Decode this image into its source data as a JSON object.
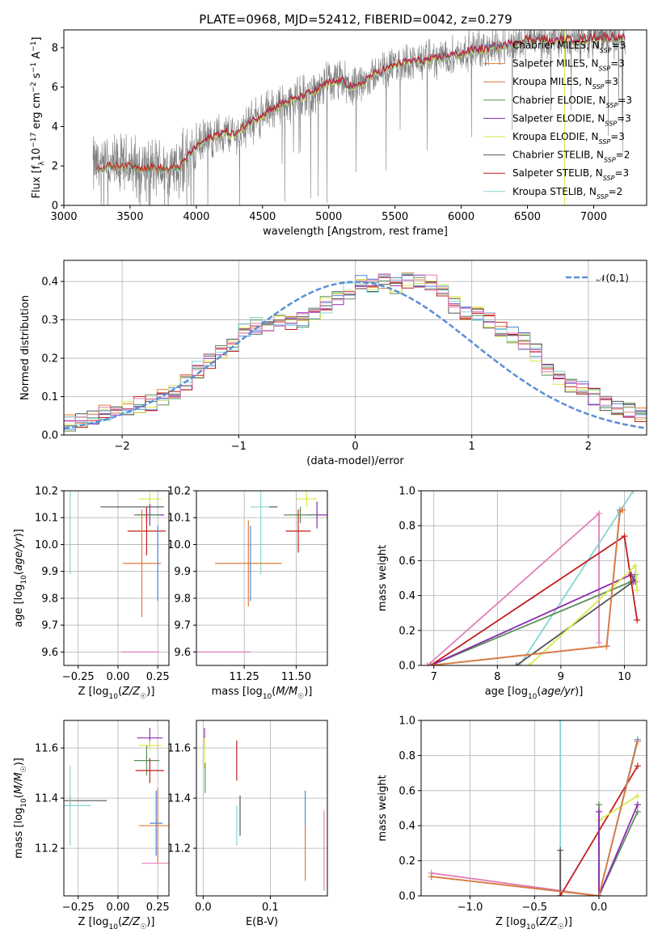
{
  "colors": {
    "chabrier_miles": "#4f86d6",
    "salpeter_miles": "#e07b39",
    "kroupa_miles": "#d2773a",
    "chabrier_elodie": "#5a8f5a",
    "salpeter_elodie": "#8e2bb0",
    "kroupa_elodie": "#d9ea4a",
    "chabrier_stelib": "#555555",
    "salpeter_stelib": "#c41e1e",
    "kroupa_stelib": "#86d4d4",
    "pink": "#e27fb8",
    "normal": "#5b8fd6",
    "spectrum_gray": "#7f7f7f"
  },
  "chart_data": [
    {
      "id": "spectrum",
      "type": "line",
      "title": "PLATE=0968, MJD=52412, FIBERID=0042, z=0.279",
      "xlabel": "wavelength [Angstrom, rest frame]",
      "ylabel": "Flux [f_λ10^-17 erg cm^-2 s^-1 A^-1]",
      "xlim": [
        3000,
        7400
      ],
      "ylim": [
        0,
        8.9
      ],
      "xticks": [
        "3000",
        "3500",
        "4000",
        "4500",
        "5000",
        "5500",
        "6000",
        "6500",
        "7000"
      ],
      "yticks": [
        "0",
        "2",
        "4",
        "6",
        "8"
      ],
      "legend": {
        "placement": "right",
        "entries": [
          {
            "label": "Chabrier MILES, N",
            "sub": "SSP",
            "tail": "=3",
            "color": "chabrier_miles"
          },
          {
            "label": "Salpeter MILES, N",
            "sub": "SSP",
            "tail": "=3",
            "color": "salpeter_miles"
          },
          {
            "label": "Kroupa MILES, N",
            "sub": "SSP",
            "tail": "=3",
            "color": "kroupa_miles"
          },
          {
            "label": "Chabrier ELODIE, N",
            "sub": "SSP",
            "tail": "=3",
            "color": "chabrier_elodie"
          },
          {
            "label": "Salpeter ELODIE, N",
            "sub": "SSP",
            "tail": "=3",
            "color": "salpeter_elodie"
          },
          {
            "label": "Kroupa ELODIE, N",
            "sub": "SSP",
            "tail": "=3",
            "color": "kroupa_elodie"
          },
          {
            "label": "Chabrier STELIB, N",
            "sub": "SSP",
            "tail": "=2",
            "color": "chabrier_stelib"
          },
          {
            "label": "Salpeter STELIB, N",
            "sub": "SSP",
            "tail": "=3",
            "color": "salpeter_stelib"
          },
          {
            "label": "Kroupa STELIB, N",
            "sub": "SSP",
            "tail": "=2",
            "color": "kroupa_stelib"
          }
        ]
      },
      "continuum": [
        [
          3220,
          2.0
        ],
        [
          3300,
          1.9
        ],
        [
          3400,
          2.0
        ],
        [
          3500,
          2.0
        ],
        [
          3600,
          1.9
        ],
        [
          3700,
          1.9
        ],
        [
          3800,
          1.8
        ],
        [
          3880,
          2.0
        ],
        [
          3950,
          2.6
        ],
        [
          4000,
          3.0
        ],
        [
          4100,
          3.4
        ],
        [
          4200,
          3.7
        ],
        [
          4300,
          3.6
        ],
        [
          4400,
          4.2
        ],
        [
          4500,
          4.6
        ],
        [
          4600,
          5.0
        ],
        [
          4700,
          5.3
        ],
        [
          4800,
          5.5
        ],
        [
          4900,
          5.8
        ],
        [
          5000,
          6.2
        ],
        [
          5100,
          6.3
        ],
        [
          5200,
          5.9
        ],
        [
          5300,
          6.5
        ],
        [
          5400,
          6.8
        ],
        [
          5500,
          7.1
        ],
        [
          5600,
          7.3
        ],
        [
          5700,
          7.3
        ],
        [
          5800,
          7.4
        ],
        [
          5900,
          7.6
        ],
        [
          6000,
          7.7
        ],
        [
          6100,
          7.9
        ],
        [
          6200,
          7.9
        ],
        [
          6300,
          8.1
        ],
        [
          6400,
          8.2
        ],
        [
          6500,
          8.4
        ],
        [
          6600,
          8.4
        ],
        [
          6700,
          8.3
        ],
        [
          6800,
          8.4
        ],
        [
          6900,
          8.4
        ],
        [
          7000,
          8.5
        ],
        [
          7100,
          8.5
        ],
        [
          7200,
          8.5
        ]
      ]
    },
    {
      "id": "residuals",
      "type": "histogram",
      "xlabel": "(data-model)/error",
      "ylabel": "Normed distribution",
      "xlim": [
        -2.5,
        2.5
      ],
      "ylim": [
        0,
        0.455
      ],
      "xticks": [
        "−2",
        "−1",
        "0",
        "1",
        "2"
      ],
      "yticks": [
        "0.0",
        "0.1",
        "0.2",
        "0.3",
        "0.4"
      ],
      "legend": {
        "placement": "top-right",
        "label": "𝒩(0,1)"
      },
      "bin_edges_start": -2.5,
      "bin_width": 0.1,
      "base_heights": [
        0.03,
        0.04,
        0.05,
        0.06,
        0.065,
        0.07,
        0.08,
        0.085,
        0.1,
        0.115,
        0.14,
        0.17,
        0.195,
        0.215,
        0.235,
        0.275,
        0.285,
        0.285,
        0.29,
        0.295,
        0.3,
        0.31,
        0.34,
        0.355,
        0.375,
        0.395,
        0.385,
        0.4,
        0.39,
        0.4,
        0.405,
        0.395,
        0.375,
        0.34,
        0.32,
        0.32,
        0.3,
        0.275,
        0.26,
        0.245,
        0.215,
        0.17,
        0.15,
        0.13,
        0.12,
        0.1,
        0.085,
        0.075,
        0.065,
        0.05
      ]
    },
    {
      "id": "age-vs-z",
      "type": "errorbar",
      "xlabel": "Z [log10(Z/Z☉)]",
      "ylabel": "age [log10(age/yr)]",
      "xlim": [
        -0.34,
        0.32
      ],
      "ylim": [
        9.55,
        10.2
      ],
      "xticks": [
        "−0.25",
        "0.00",
        "0.25"
      ],
      "yticks": [
        "9.6",
        "9.7",
        "9.8",
        "9.9",
        "10.0",
        "10.1",
        "10.2"
      ],
      "points": [
        {
          "c": "kroupa_elodie",
          "x": 0.2,
          "y": 10.17,
          "xe": 0.07,
          "ye": 0.03
        },
        {
          "c": "kroupa_stelib",
          "x": -0.3,
          "y": 10.14,
          "xe": 0.0,
          "ye": 0.25
        },
        {
          "c": "chabrier_stelib",
          "x": 0.09,
          "y": 10.14,
          "xe": 0.2,
          "ye": 0.0
        },
        {
          "c": "salpeter_elodie",
          "x": 0.2,
          "y": 10.11,
          "xe": 0.09,
          "ye": 0.04
        },
        {
          "c": "chabrier_elodie",
          "x": 0.18,
          "y": 10.11,
          "xe": 0.08,
          "ye": 0.03
        },
        {
          "c": "salpeter_stelib",
          "x": 0.18,
          "y": 10.05,
          "xe": 0.12,
          "ye": 0.09
        },
        {
          "c": "salpeter_miles",
          "x": 0.15,
          "y": 9.93,
          "xe": 0.12,
          "ye": 0.2
        },
        {
          "c": "chabrier_miles",
          "x": 0.25,
          "y": 9.93,
          "xe": 0.0,
          "ye": 0.14
        },
        {
          "c": "pink",
          "x": 0.14,
          "y": 9.6,
          "xe": 0.12,
          "ye": 0.0
        }
      ]
    },
    {
      "id": "age-vs-mass",
      "type": "errorbar",
      "xlabel": "mass [log10(M/M☉)]",
      "ylabel": "",
      "xlim": [
        11.02,
        11.65
      ],
      "ylim": [
        9.55,
        10.2
      ],
      "xticks": [
        "11.25",
        "11.50"
      ],
      "yticks": [
        "9.6",
        "9.7",
        "9.8",
        "9.9",
        "10.0",
        "10.1",
        "10.2"
      ],
      "points": [
        {
          "c": "kroupa_elodie",
          "x": 11.55,
          "y": 10.17,
          "xe": 0.05,
          "ye": 0.03
        },
        {
          "c": "kroupa_stelib",
          "x": 11.33,
          "y": 10.14,
          "xe": 0.05,
          "ye": 0.25
        },
        {
          "c": "chabrier_stelib",
          "x": 11.39,
          "y": 10.14,
          "xe": 0.02,
          "ye": 0.0
        },
        {
          "c": "salpeter_elodie",
          "x": 11.6,
          "y": 10.11,
          "xe": 0.05,
          "ye": 0.05
        },
        {
          "c": "chabrier_elodie",
          "x": 11.52,
          "y": 10.11,
          "xe": 0.08,
          "ye": 0.03
        },
        {
          "c": "salpeter_stelib",
          "x": 11.51,
          "y": 10.05,
          "xe": 0.06,
          "ye": 0.08
        },
        {
          "c": "salpeter_miles",
          "x": 11.27,
          "y": 9.93,
          "xe": 0.16,
          "ye": 0.16
        },
        {
          "c": "chabrier_miles",
          "x": 11.28,
          "y": 9.93,
          "xe": 0.0,
          "ye": 0.14
        },
        {
          "c": "pink",
          "x": 11.14,
          "y": 9.6,
          "xe": 0.14,
          "ye": 0.0
        }
      ]
    },
    {
      "id": "weight-vs-age",
      "type": "line",
      "xlabel": "age [log10(age/yr)]",
      "ylabel": "mass weight",
      "xlim": [
        6.8,
        10.35
      ],
      "ylim": [
        0,
        1.0
      ],
      "xticks": [
        "7",
        "8",
        "9",
        "10"
      ],
      "yticks": [
        "0.0",
        "0.2",
        "0.4",
        "0.6",
        "0.8",
        "1.0"
      ],
      "series": [
        {
          "c": "pink",
          "pts": [
            [
              6.9,
              0
            ],
            [
              9.6,
              0.87
            ],
            [
              9.6,
              0.13
            ]
          ]
        },
        {
          "c": "kroupa_stelib",
          "pts": [
            [
              8.35,
              0
            ],
            [
              10.14,
              1.0
            ]
          ]
        },
        {
          "c": "chabrier_stelib",
          "pts": [
            [
              8.3,
              0
            ],
            [
              10.14,
              0.48
            ]
          ]
        },
        {
          "c": "chabrier_elodie",
          "pts": [
            [
              6.95,
              0
            ],
            [
              10.11,
              0.48
            ],
            [
              10.17,
              0.52
            ]
          ]
        },
        {
          "c": "salpeter_elodie",
          "pts": [
            [
              6.95,
              0
            ],
            [
              10.11,
              0.52
            ],
            [
              10.17,
              0.48
            ]
          ]
        },
        {
          "c": "salpeter_stelib",
          "pts": [
            [
              6.95,
              0
            ],
            [
              10.0,
              0.74
            ],
            [
              10.2,
              0.26
            ]
          ]
        },
        {
          "c": "kroupa_elodie",
          "pts": [
            [
              8.5,
              0
            ],
            [
              10.17,
              0.57
            ],
            [
              10.2,
              0.43
            ]
          ]
        },
        {
          "c": "chabrier_miles",
          "pts": [
            [
              6.95,
              0
            ],
            [
              9.72,
              0.11
            ],
            [
              9.93,
              0.89
            ]
          ]
        },
        {
          "c": "salpeter_miles",
          "pts": [
            [
              6.95,
              0
            ],
            [
              9.72,
              0.11
            ],
            [
              9.93,
              0.88
            ],
            [
              9.97,
              0.89
            ]
          ]
        }
      ]
    },
    {
      "id": "mass-vs-z",
      "type": "errorbar",
      "xlabel": "Z [log10(Z/Z☉)]",
      "ylabel": "mass [log10(M/M☉)]",
      "xlim": [
        -0.34,
        0.32
      ],
      "ylim": [
        11.01,
        11.71
      ],
      "xticks": [
        "−0.25",
        "0.00",
        "0.25"
      ],
      "yticks": [
        "11.2",
        "11.4",
        "11.6"
      ],
      "points": [
        {
          "c": "salpeter_elodie",
          "x": 0.2,
          "y": 11.64,
          "xe": 0.08,
          "ye": 0.04
        },
        {
          "c": "kroupa_elodie",
          "x": 0.2,
          "y": 11.61,
          "xe": 0.07,
          "ye": 0.02
        },
        {
          "c": "chabrier_elodie",
          "x": 0.18,
          "y": 11.55,
          "xe": 0.08,
          "ye": 0.06
        },
        {
          "c": "salpeter_stelib",
          "x": 0.2,
          "y": 11.51,
          "xe": 0.09,
          "ye": 0.05
        },
        {
          "c": "chabrier_stelib",
          "x": -0.3,
          "y": 11.39,
          "xe": 0.23,
          "ye": 0.02
        },
        {
          "c": "kroupa_stelib",
          "x": -0.3,
          "y": 11.37,
          "xe": 0.13,
          "ye": 0.16
        },
        {
          "c": "chabrier_miles",
          "x": 0.24,
          "y": 11.3,
          "xe": 0.04,
          "ye": 0.13
        },
        {
          "c": "salpeter_miles",
          "x": 0.25,
          "y": 11.29,
          "xe": 0.12,
          "ye": 0.15
        },
        {
          "c": "pink",
          "x": 0.25,
          "y": 11.14,
          "xe": 0.1,
          "ye": 0.0
        }
      ]
    },
    {
      "id": "mass-vs-ebv",
      "type": "errorbar",
      "xlabel": "E(B-V)",
      "ylabel": "",
      "xlim": [
        -0.01,
        0.185
      ],
      "ylim": [
        11.01,
        11.71
      ],
      "xticks": [
        "0.0",
        "0.1"
      ],
      "yticks": [
        "11.2",
        "11.4",
        "11.6"
      ],
      "points": [
        {
          "c": "salpeter_elodie",
          "x": 0.002,
          "y": 11.64,
          "xe": 0,
          "ye": 0.04
        },
        {
          "c": "kroupa_elodie",
          "x": 0.002,
          "y": 11.58,
          "xe": 0,
          "ye": 0.06
        },
        {
          "c": "chabrier_elodie",
          "x": 0.003,
          "y": 11.48,
          "xe": 0,
          "ye": 0.06
        },
        {
          "c": "salpeter_stelib",
          "x": 0.05,
          "y": 11.55,
          "xe": 0,
          "ye": 0.08
        },
        {
          "c": "chabrier_stelib",
          "x": 0.055,
          "y": 11.33,
          "xe": 0,
          "ye": 0.08
        },
        {
          "c": "kroupa_stelib",
          "x": 0.05,
          "y": 11.29,
          "xe": 0,
          "ye": 0.08
        },
        {
          "c": "chabrier_miles",
          "x": 0.152,
          "y": 11.34,
          "xe": 0,
          "ye": 0.09
        },
        {
          "c": "salpeter_miles",
          "x": 0.152,
          "y": 11.18,
          "xe": 0,
          "ye": 0.11
        },
        {
          "c": "pink",
          "x": 0.18,
          "y": 11.19,
          "xe": 0,
          "ye": 0.16
        }
      ]
    },
    {
      "id": "weight-vs-z",
      "type": "line",
      "xlabel": "Z [log10(Z/Z☉)]",
      "ylabel": "mass weight",
      "xlim": [
        -1.38,
        0.37
      ],
      "ylim": [
        0,
        1.0
      ],
      "xticks": [
        "−1.0",
        "−0.5",
        "0.0"
      ],
      "yticks": [
        "0.0",
        "0.2",
        "0.4",
        "0.6",
        "0.8",
        "1.0"
      ],
      "series": [
        {
          "c": "pink",
          "pts": [
            [
              -1.3,
              0.13
            ],
            [
              0,
              0
            ]
          ]
        },
        {
          "c": "kroupa_stelib",
          "pts": [
            [
              -0.3,
              0
            ],
            [
              -0.3,
              1.0
            ]
          ]
        },
        {
          "c": "chabrier_stelib",
          "pts": [
            [
              -0.3,
              0.26
            ],
            [
              -0.3,
              0
            ]
          ]
        },
        {
          "c": "salpeter_stelib",
          "pts": [
            [
              -0.3,
              0
            ],
            [
              0.3,
              0.74
            ]
          ]
        },
        {
          "c": "kroupa_elodie",
          "pts": [
            [
              0,
              0.43
            ],
            [
              0.3,
              0.57
            ]
          ]
        },
        {
          "c": "chabrier_elodie",
          "pts": [
            [
              0,
              0.52
            ],
            [
              0,
              0
            ],
            [
              0.3,
              0.48
            ]
          ]
        },
        {
          "c": "salpeter_elodie",
          "pts": [
            [
              0,
              0.48
            ],
            [
              0,
              0
            ],
            [
              0.3,
              0.52
            ]
          ]
        },
        {
          "c": "chabrier_miles",
          "pts": [
            [
              -1.3,
              0.11
            ],
            [
              0,
              0
            ],
            [
              0.3,
              0.89
            ]
          ]
        },
        {
          "c": "salpeter_miles",
          "pts": [
            [
              -1.3,
              0.11
            ],
            [
              0,
              0
            ],
            [
              0.3,
              0.88
            ]
          ]
        }
      ]
    }
  ]
}
